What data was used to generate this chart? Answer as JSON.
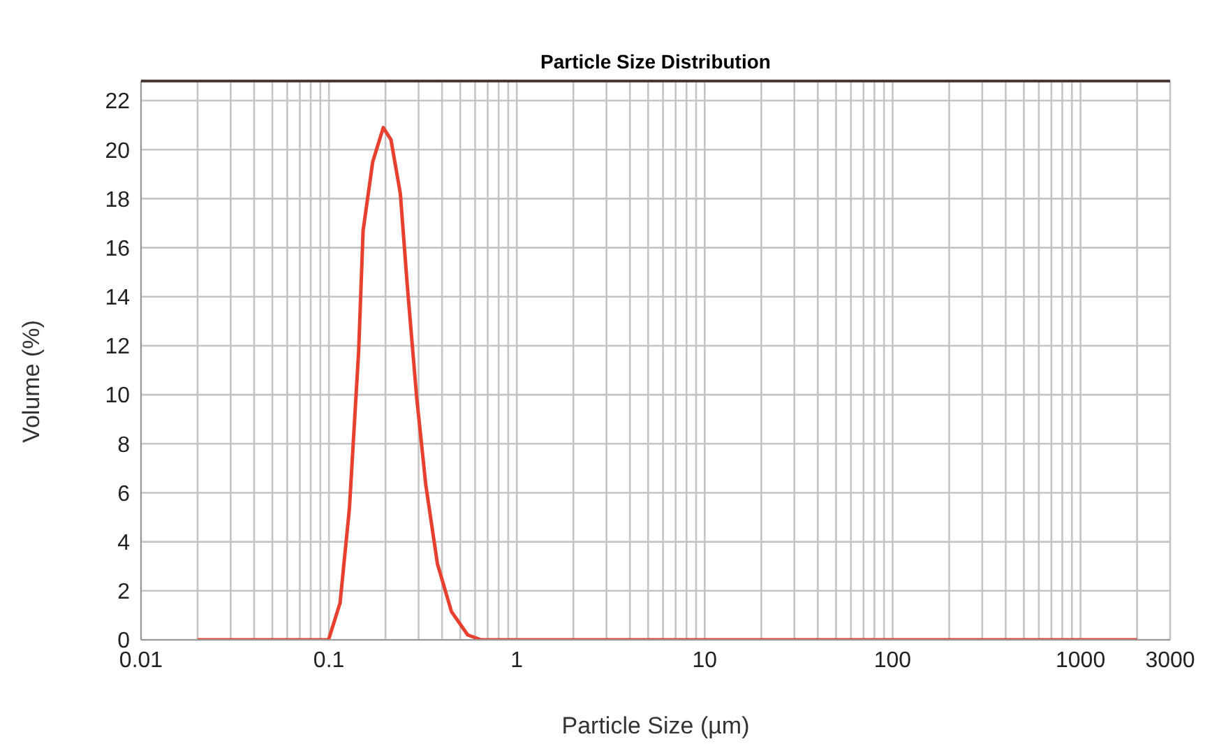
{
  "chart_data": {
    "type": "line",
    "title": "Particle Size Distribution",
    "xlabel": "Particle  Size (µm)",
    "ylabel": "Volume (%)",
    "log": "x",
    "grid": true,
    "legend": false,
    "marker": "none",
    "line_style": "solid",
    "xlim": [
      0.01,
      3000
    ],
    "xticks": [
      0.01,
      0.1,
      1,
      10,
      100,
      1000,
      3000
    ],
    "ylim": [
      0,
      22.8
    ],
    "yticks": [
      0,
      2,
      4,
      6,
      8,
      10,
      12,
      14,
      16,
      18,
      20,
      22
    ],
    "series": [
      {
        "color": "#e8402e",
        "x": [
          0.02,
          0.0995,
          0.1146,
          0.1285,
          0.144,
          0.152,
          0.171,
          0.1946,
          0.214,
          0.24,
          0.261,
          0.293,
          0.328,
          0.378,
          0.449,
          0.548,
          0.646,
          2000
        ],
        "values": [
          0,
          0,
          1.5,
          5.35,
          11.8,
          16.7,
          19.5,
          20.9,
          20.4,
          18.2,
          14.5,
          9.9,
          6.3,
          3.1,
          1.15,
          0.2,
          0,
          0
        ]
      }
    ]
  }
}
